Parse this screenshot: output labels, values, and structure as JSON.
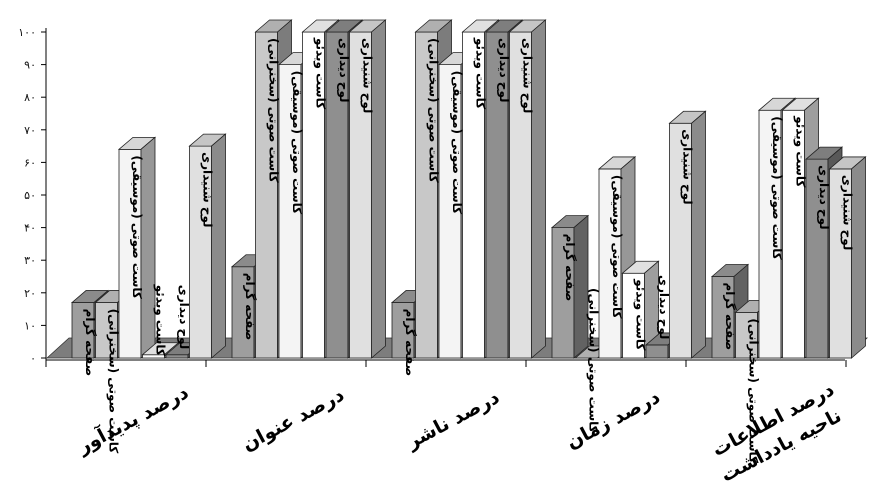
{
  "chart_data": {
    "type": "bar",
    "categories": [
      "درصد پدیدآور",
      "درصد عنوان",
      "درصد ناشر",
      "درصد زمان",
      "درصد اطلاعات ناحیه یادداشت"
    ],
    "series": [
      {
        "name": "صفحه گرام",
        "values": [
          17,
          28,
          17,
          40,
          25
        ],
        "color": "#9e9e9e"
      },
      {
        "name": "کاست صوتی (سخنرانی)",
        "values": [
          17,
          100,
          100,
          0,
          14
        ],
        "color": "#c8c8c8"
      },
      {
        "name": "کاست صوتی (موسیقی)",
        "values": [
          64,
          90,
          90,
          58,
          76
        ],
        "color": "#f4f4f4"
      },
      {
        "name": "کاست ویدئو",
        "values": [
          1,
          100,
          100,
          26,
          76
        ],
        "color": "#ffffff"
      },
      {
        "name": "لوح دیداری",
        "values": [
          1,
          100,
          100,
          4,
          61
        ],
        "color": "#8f8f8f"
      },
      {
        "name": "لوح شنیداری",
        "values": [
          65,
          100,
          100,
          72,
          58
        ],
        "color": "#e0e0e0"
      }
    ],
    "ytick_labels": [
      "۰",
      "۱۰",
      "۲۰",
      "۳۰",
      "۴۰",
      "۵۰",
      "۶۰",
      "۷۰",
      "۸۰",
      "۹۰",
      "۱۰۰"
    ],
    "ylim": [
      0,
      100
    ],
    "grid": false,
    "legend": "none",
    "bar_labels": [
      [
        "صفحه گرام",
        "کاست صوتی (سخنرانی)",
        "کاست صوتی (موسیقی)",
        "کاست ویدئو",
        "لوح دیداری",
        "لوح شنیداری"
      ],
      [
        "صفحه گرام",
        "کاست صوتی (سخنرانی)",
        "کاست صوتی (موسیقی)",
        "کاست ویدئو",
        "لوح دیداری",
        "لوح شنیداری"
      ],
      [
        "صفحه گرام",
        "کاست صوتی (سخنرانی)",
        "کاست صوتی (موسیقی)",
        "کاست ویدئو",
        "لوح دیداری",
        "لوح شنیداری"
      ],
      [
        "صفحه گرام",
        "کاست صوتی (سخنرانی)",
        "کاست صوتی (موسیقی)",
        "کاست ویدئو",
        "لوح دیداری",
        "لوح شنیداری"
      ],
      [
        "صفحه گرام",
        "کاست صوتی (سخنرانی)",
        "کاست صوتی (موسیقی)",
        "کاست ویدئو",
        "لوح دیداری",
        "لوح شنیداری"
      ]
    ],
    "category_label_lines": [
      [
        "درصد پدیدآور"
      ],
      [
        "درصد عنوان"
      ],
      [
        "درصد ناشر"
      ],
      [
        "درصد زمان"
      ],
      [
        "درصد اطلاعات",
        "ناحیه یادداشت"
      ]
    ]
  }
}
